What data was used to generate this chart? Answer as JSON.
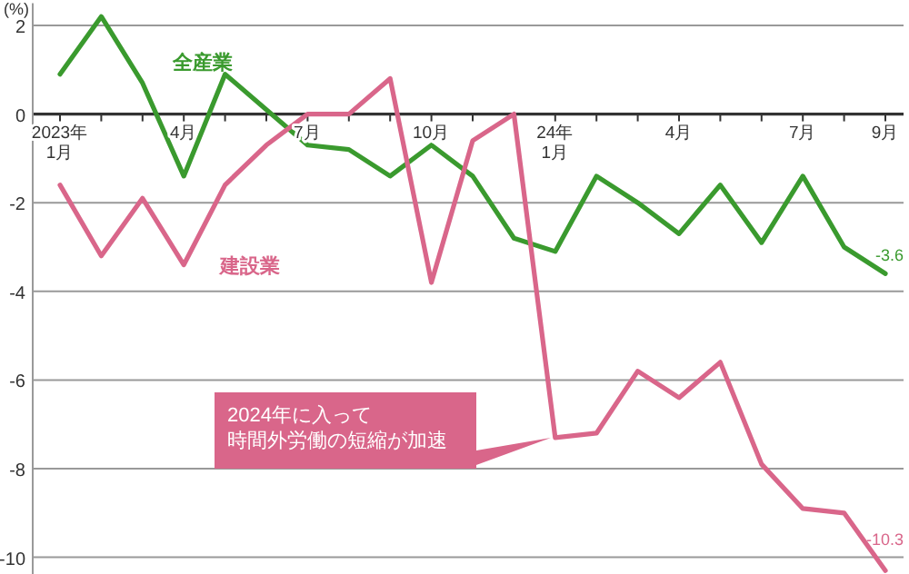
{
  "chart_data": {
    "type": "line",
    "ylabel": "(%)",
    "categories": [
      "2023年\n1月",
      null,
      null,
      "4月",
      null,
      null,
      "7月",
      null,
      null,
      "10月",
      null,
      null,
      "24年\n1月",
      null,
      null,
      "4月",
      null,
      null,
      "7月",
      null,
      "9月"
    ],
    "series": [
      {
        "name": "全産業",
        "color": "#3a9a2e",
        "values": [
          0.9,
          2.2,
          0.7,
          -1.4,
          0.9,
          0.1,
          -0.7,
          -0.8,
          -1.4,
          -0.7,
          -1.4,
          -2.8,
          -3.1,
          -1.4,
          -2.0,
          -2.7,
          -1.6,
          -2.9,
          -1.4,
          -3.0,
          -3.6
        ],
        "value_labels": [
          null,
          null,
          null,
          null,
          null,
          null,
          null,
          null,
          null,
          null,
          null,
          null,
          null,
          null,
          null,
          null,
          null,
          null,
          null,
          null,
          "-3.6"
        ]
      },
      {
        "name": "建設業",
        "color": "#d9668a",
        "values": [
          -1.6,
          -3.2,
          -1.9,
          -3.4,
          -1.6,
          -0.7,
          0,
          0,
          0.8,
          -3.8,
          -0.6,
          0,
          -7.3,
          -7.2,
          -5.8,
          -6.4,
          -5.6,
          -7.9,
          -8.9,
          -9.0,
          -10.3
        ],
        "value_labels": [
          null,
          null,
          null,
          null,
          null,
          null,
          null,
          null,
          null,
          null,
          null,
          null,
          null,
          null,
          null,
          null,
          null,
          null,
          null,
          null,
          "-10.3"
        ]
      }
    ],
    "ylim": [
      -10.4,
      2.5
    ],
    "yticks": [
      2,
      0,
      -2,
      -4,
      -6,
      -8,
      -10
    ],
    "grid": "y",
    "marker": "none",
    "line_style": "solid",
    "annotations": [
      "2024年に入って",
      "時間外労働の短縮が加速"
    ]
  }
}
